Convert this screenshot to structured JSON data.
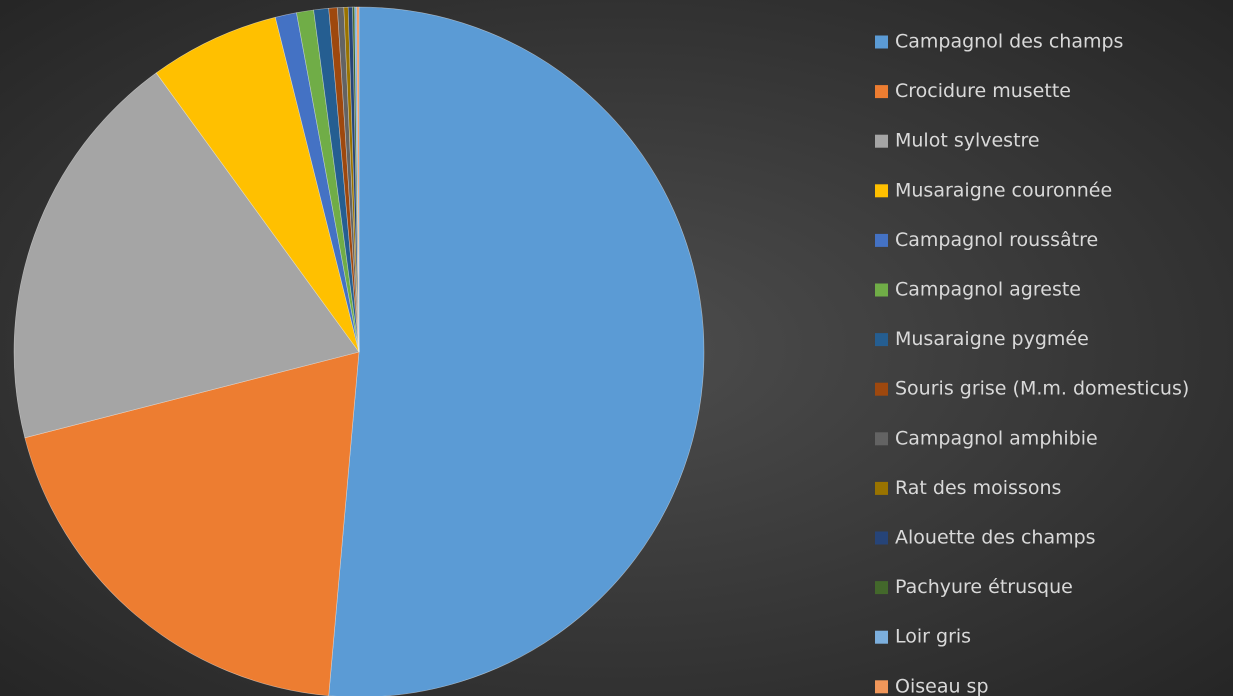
{
  "chart_data": {
    "type": "pie",
    "categories": [
      "Campagnol des champs",
      "Crocidure musette",
      "Mulot sylvestre",
      "Musaraigne couronnée",
      "Campagnol roussâtre",
      "Campagnol agreste",
      "Musaraigne pygmée",
      "Souris grise (M.m. domesticus)",
      "Campagnol amphibie",
      "Rat des moissons",
      "Alouette des champs",
      "Pachyure étrusque",
      "Loir gris",
      "Oiseau sp"
    ],
    "values": [
      51.4,
      19.6,
      19.0,
      6.1,
      1.0,
      0.8,
      0.7,
      0.4,
      0.3,
      0.2,
      0.2,
      0.1,
      0.1,
      0.1
    ],
    "colors": [
      "#5b9bd5",
      "#ed7d31",
      "#a5a5a5",
      "#ffc000",
      "#4472c4",
      "#70ad47",
      "#255e91",
      "#9e480e",
      "#636363",
      "#997300",
      "#264478",
      "#43682b",
      "#7cafdd",
      "#f1975a"
    ],
    "legend": "right"
  }
}
